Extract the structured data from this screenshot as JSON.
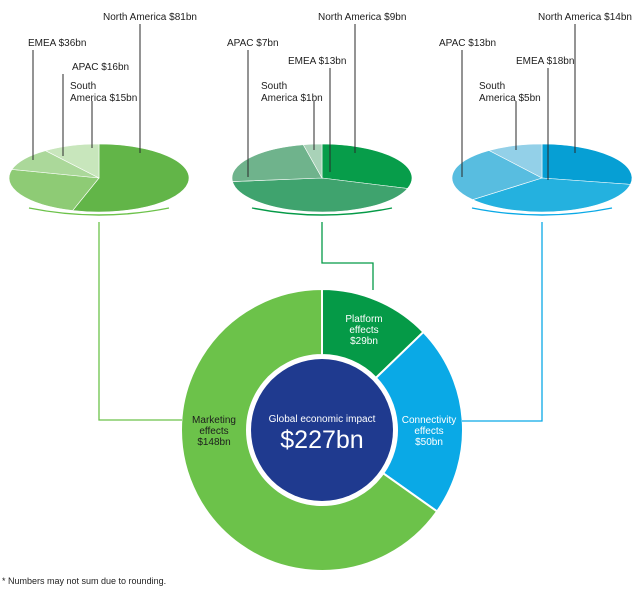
{
  "chart_data": {
    "type": "pie",
    "total": {
      "label": "Global economic impact",
      "value": 227,
      "value_label": "$227bn",
      "unit": "$bn",
      "color": "#1f3a8f"
    },
    "breakdown": [
      {
        "key": "marketing",
        "label_lines": [
          "Marketing",
          "effects",
          "$148bn"
        ],
        "value": 148,
        "color": "#6cc24a"
      },
      {
        "key": "platform",
        "label_lines": [
          "Platform",
          "effects",
          "$29bn"
        ],
        "value": 29,
        "color": "#059a47"
      },
      {
        "key": "connectivity",
        "label_lines": [
          "Connectivity",
          "effects",
          "$50bn"
        ],
        "value": 50,
        "color": "#0aa9e6"
      }
    ],
    "regional": [
      {
        "parent": "marketing",
        "slices": [
          {
            "label_lines": [
              "North America $81bn"
            ],
            "region": "North America",
            "value": 81,
            "color": "#62b548"
          },
          {
            "label_lines": [
              "EMEA $36bn"
            ],
            "region": "EMEA",
            "value": 36,
            "color": "#8ecb75"
          },
          {
            "label_lines": [
              "APAC $16bn"
            ],
            "region": "APAC",
            "value": 16,
            "color": "#abd89a"
          },
          {
            "label_lines": [
              "South",
              "America $15bn"
            ],
            "region": "South America",
            "value": 15,
            "color": "#c8e6bc"
          }
        ]
      },
      {
        "parent": "platform",
        "slices": [
          {
            "label_lines": [
              "North America $9bn"
            ],
            "region": "North America",
            "value": 9,
            "color": "#079d4a"
          },
          {
            "label_lines": [
              "EMEA $13bn"
            ],
            "region": "EMEA",
            "value": 13,
            "color": "#3fa36e"
          },
          {
            "label_lines": [
              "APAC $7bn"
            ],
            "region": "APAC",
            "value": 7,
            "color": "#6fb38c"
          },
          {
            "label_lines": [
              "South",
              "America $1bn"
            ],
            "region": "South America",
            "value": 1,
            "color": "#a9d2b8"
          }
        ]
      },
      {
        "parent": "connectivity",
        "slices": [
          {
            "label_lines": [
              "North America $14bn"
            ],
            "region": "North America",
            "value": 14,
            "color": "#069fd4"
          },
          {
            "label_lines": [
              "EMEA $18bn"
            ],
            "region": "EMEA",
            "value": 18,
            "color": "#24b1df"
          },
          {
            "label_lines": [
              "APAC $13bn"
            ],
            "region": "APAC",
            "value": 13,
            "color": "#58bde0"
          },
          {
            "label_lines": [
              "South",
              "America $5bn"
            ],
            "region": "South America",
            "value": 5,
            "color": "#93d0e8"
          }
        ]
      }
    ]
  },
  "footnote": "* Numbers may not sum due to rounding."
}
